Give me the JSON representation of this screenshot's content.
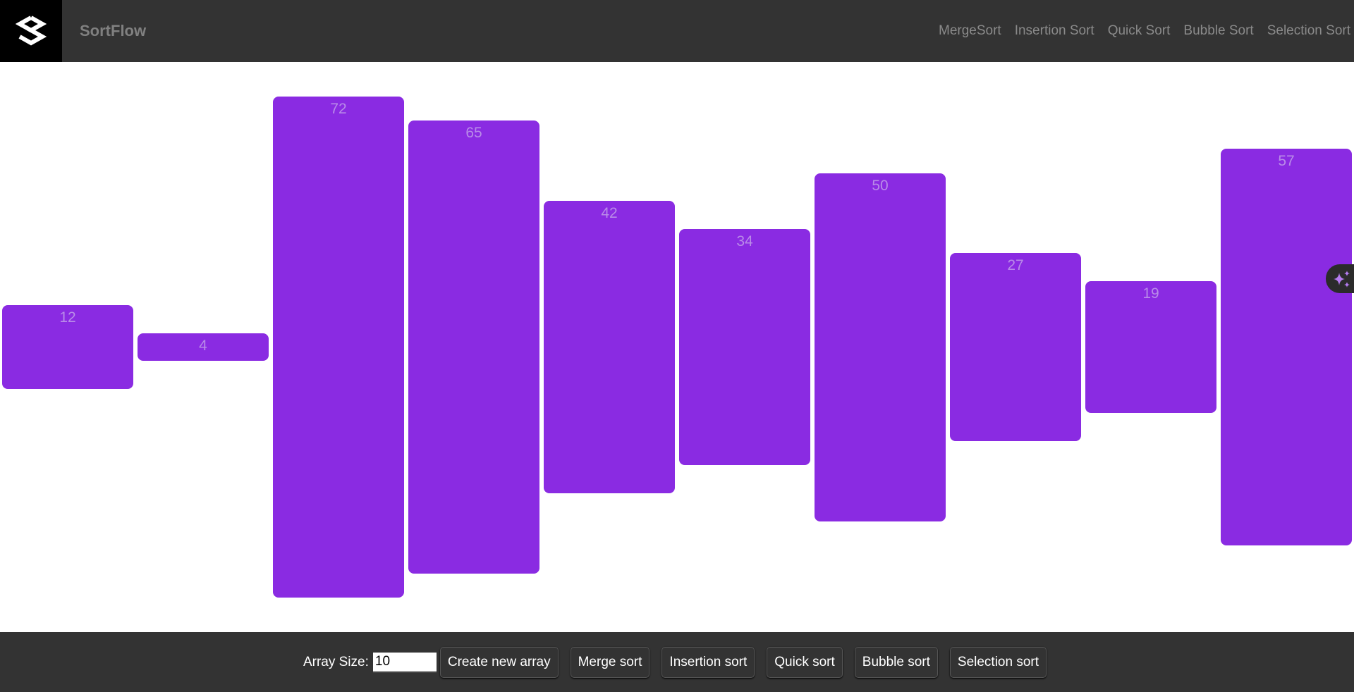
{
  "header": {
    "brand": "SortFlow",
    "nav": [
      "MergeSort",
      "Insertion Sort",
      "Quick Sort",
      "Bubble Sort",
      "Selection Sort"
    ]
  },
  "array": {
    "values": [
      12,
      4,
      72,
      65,
      42,
      34,
      50,
      27,
      19,
      57
    ],
    "bar_color": "#8a2be2"
  },
  "footer": {
    "size_label": "Array Size:",
    "size_value": "10",
    "buttons": [
      "Create new array",
      "Merge sort",
      "Insertion sort",
      "Quick sort",
      "Bubble sort",
      "Selection sort"
    ]
  },
  "widget": {
    "icon": "sparkles-icon"
  }
}
